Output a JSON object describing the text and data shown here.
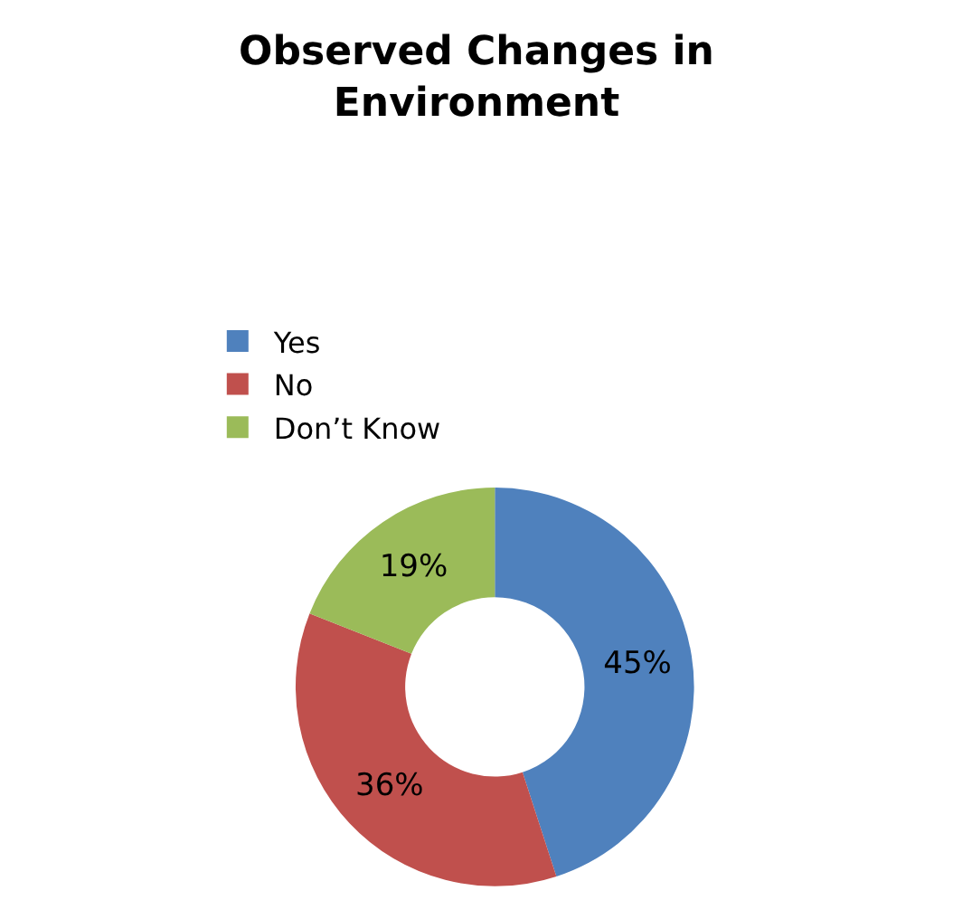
{
  "chart_data": {
    "type": "donut",
    "title": "Observed Changes in Environment",
    "categories": [
      "Yes",
      "No",
      "Don’t Know"
    ],
    "values": [
      45,
      36,
      19
    ],
    "value_labels": [
      "45%",
      "36%",
      "19%"
    ],
    "colors": [
      "#4f81bd",
      "#c0504d",
      "#9bbb59"
    ],
    "legend": "top left"
  }
}
